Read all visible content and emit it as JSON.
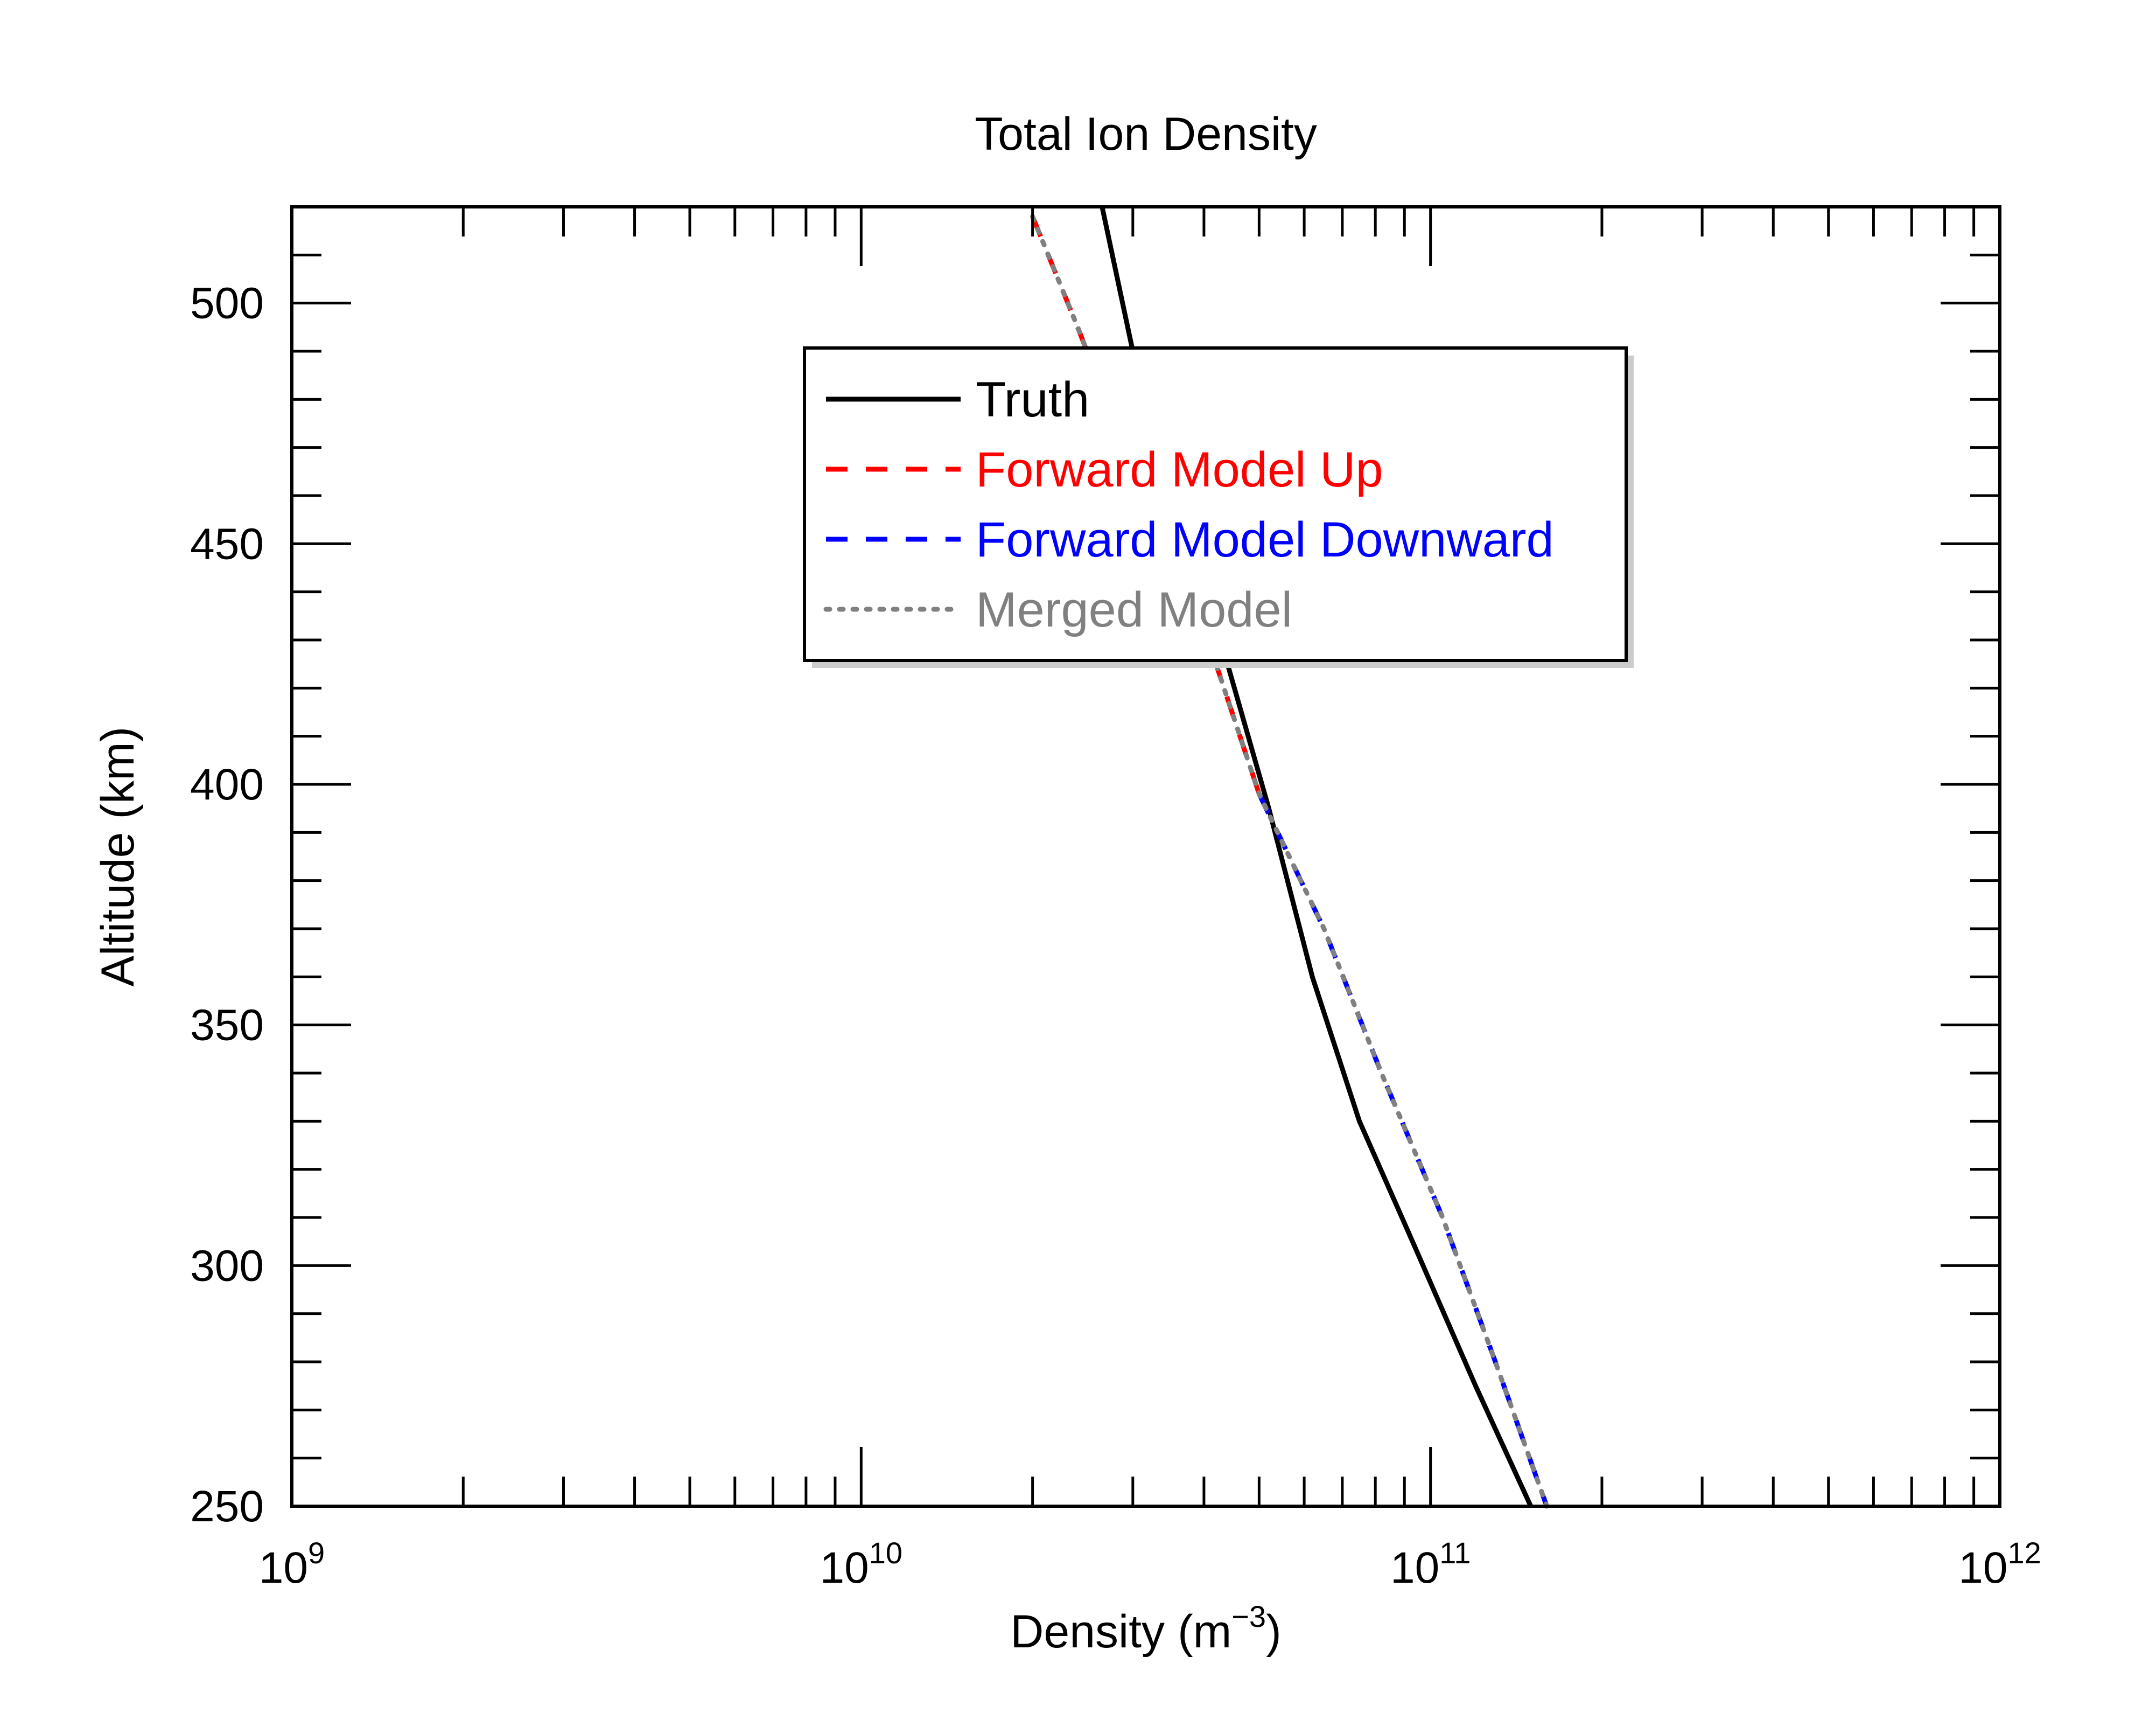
{
  "chart_data": {
    "type": "line",
    "title": "Total Ion Density",
    "xlabel": "Density (m",
    "xlabel_exponent": "−3",
    "xlabel_close": ")",
    "ylabel": "Altitude (km)",
    "xscale": "log",
    "xlim": [
      1000000000.0,
      1000000000000.0
    ],
    "ylim": [
      250,
      520
    ],
    "x_ticks": [
      {
        "value": 1000000000.0,
        "base": "10",
        "exp": "9"
      },
      {
        "value": 10000000000.0,
        "base": "10",
        "exp": "10"
      },
      {
        "value": 100000000000.0,
        "base": "10",
        "exp": "11"
      },
      {
        "value": 1000000000000.0,
        "base": "10",
        "exp": "12"
      }
    ],
    "y_ticks": [
      {
        "value": 250,
        "label": "250"
      },
      {
        "value": 300,
        "label": "300"
      },
      {
        "value": 350,
        "label": "350"
      },
      {
        "value": 400,
        "label": "400"
      },
      {
        "value": 450,
        "label": "450"
      },
      {
        "value": 500,
        "label": "500"
      }
    ],
    "legend_position": "upper-center",
    "series": [
      {
        "name": "Truth",
        "color": "#000000",
        "style": "solid",
        "points": [
          [
            26500000000.0,
            520
          ],
          [
            30000000000.0,
            490
          ],
          [
            36000000000.0,
            455
          ],
          [
            44000000000.0,
            425
          ],
          [
            52000000000.0,
            395
          ],
          [
            62000000000.0,
            360
          ],
          [
            75000000000.0,
            330
          ],
          [
            93000000000.0,
            305
          ],
          [
            120000000000.0,
            275
          ],
          [
            150000000000.0,
            250
          ]
        ]
      },
      {
        "name": "Forward Model Up",
        "color": "#ff0000",
        "style": "dashed",
        "points": [
          [
            20000000000.0,
            518
          ],
          [
            24000000000.0,
            495
          ],
          [
            29000000000.0,
            470
          ],
          [
            35000000000.0,
            445
          ],
          [
            42000000000.0,
            425
          ],
          [
            50000000000.0,
            398
          ]
        ]
      },
      {
        "name": "Forward Model Downward",
        "color": "#0000ff",
        "style": "dashed",
        "points": [
          [
            50000000000.0,
            398
          ],
          [
            65000000000.0,
            370
          ],
          [
            82000000000.0,
            340
          ],
          [
            105000000000.0,
            310
          ],
          [
            130000000000.0,
            280
          ],
          [
            160000000000.0,
            250
          ]
        ]
      },
      {
        "name": "Merged Model",
        "color": "#808080",
        "style": "dotted",
        "points": [
          [
            20000000000.0,
            518
          ],
          [
            24000000000.0,
            495
          ],
          [
            29000000000.0,
            470
          ],
          [
            35000000000.0,
            445
          ],
          [
            42000000000.0,
            425
          ],
          [
            50000000000.0,
            398
          ],
          [
            65000000000.0,
            370
          ],
          [
            82000000000.0,
            340
          ],
          [
            105000000000.0,
            310
          ],
          [
            130000000000.0,
            280
          ],
          [
            160000000000.0,
            250
          ]
        ]
      }
    ]
  }
}
